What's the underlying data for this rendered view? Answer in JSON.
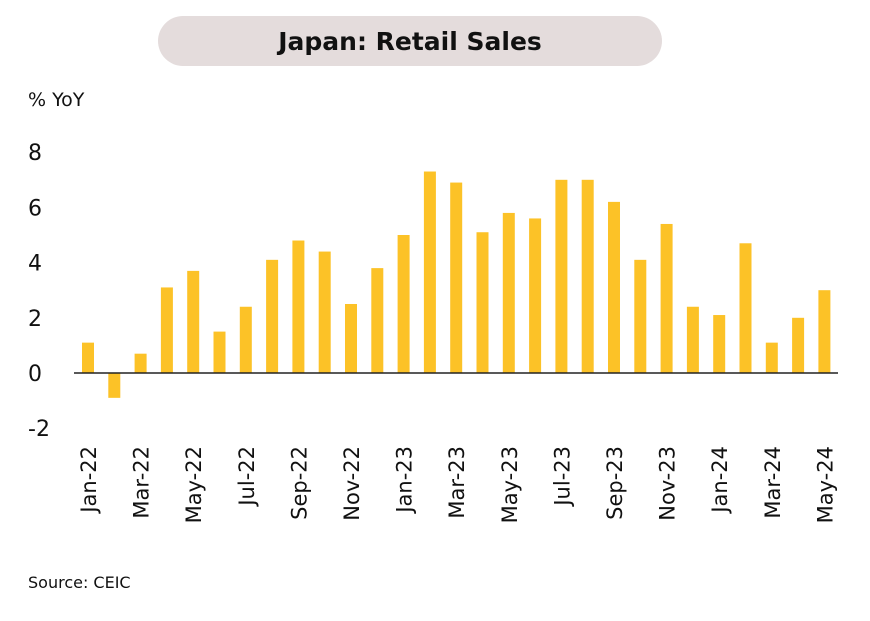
{
  "chart_data": {
    "type": "bar",
    "title": "Japan: Retail Sales",
    "ylabel": "% YoY",
    "xlabel": "",
    "source": "Source: CEIC",
    "ylim": [
      -2,
      8
    ],
    "yticks": [
      8,
      6,
      4,
      2,
      0,
      -2
    ],
    "bar_color": "#fcc227",
    "categories": [
      "Jan-22",
      "Feb-22",
      "Mar-22",
      "Apr-22",
      "May-22",
      "Jun-22",
      "Jul-22",
      "Aug-22",
      "Sep-22",
      "Oct-22",
      "Nov-22",
      "Dec-22",
      "Jan-23",
      "Feb-23",
      "Mar-23",
      "Apr-23",
      "May-23",
      "Jun-23",
      "Jul-23",
      "Aug-23",
      "Sep-23",
      "Oct-23",
      "Nov-23",
      "Dec-23",
      "Jan-24",
      "Feb-24",
      "Mar-24",
      "Apr-24",
      "May-24"
    ],
    "tick_labels": [
      "Jan-22",
      "Mar-22",
      "May-22",
      "Jul-22",
      "Sep-22",
      "Nov-22",
      "Jan-23",
      "Mar-23",
      "May-23",
      "Jul-23",
      "Sep-23",
      "Nov-23",
      "Jan-24",
      "Mar-24",
      "May-24"
    ],
    "values": [
      1.1,
      -0.9,
      0.7,
      3.1,
      3.7,
      1.5,
      2.4,
      4.1,
      4.8,
      4.4,
      2.5,
      3.8,
      5.0,
      7.3,
      6.9,
      5.1,
      5.8,
      5.6,
      7.0,
      7.0,
      6.2,
      4.1,
      5.4,
      2.4,
      2.1,
      4.7,
      1.1,
      2.0,
      3.0
    ]
  }
}
